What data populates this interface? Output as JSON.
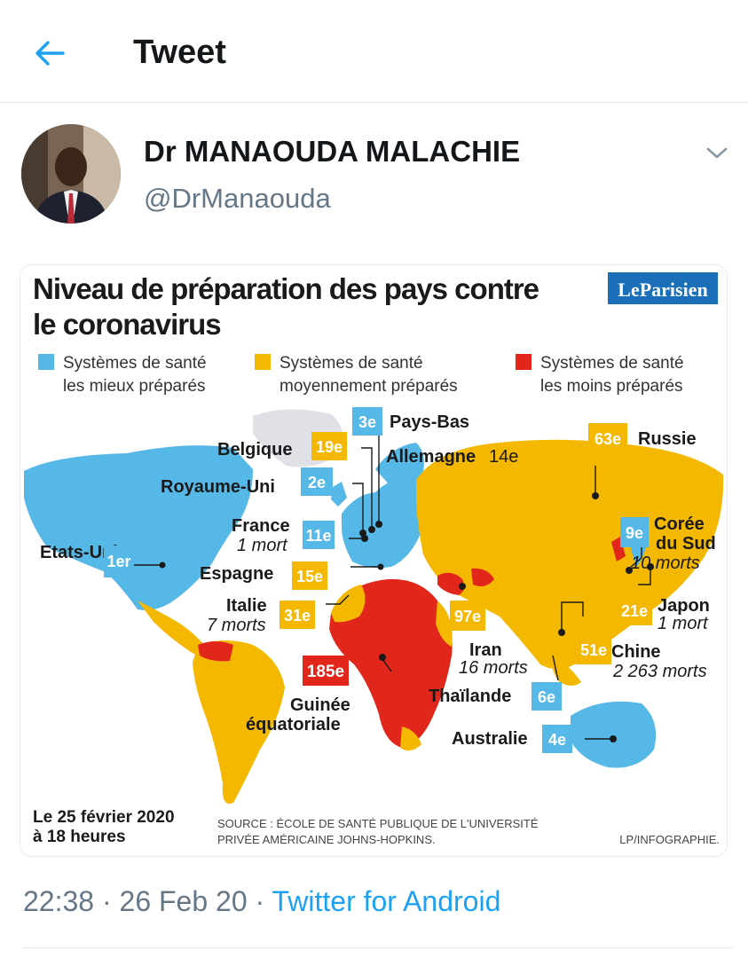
{
  "header": {
    "title": "Tweet",
    "back_icon": "arrow-left-icon",
    "accent": "#1da1f2"
  },
  "author": {
    "name": "Dr MANAOUDA MALACHIE",
    "handle": "@DrManaouda",
    "menu_icon": "chevron-down-icon"
  },
  "infographic": {
    "title_line1": "Niveau de préparation des pays contre",
    "title_line2": "le coronavirus",
    "brand": "LeParisien",
    "legend": [
      {
        "line1": "Systèmes de santé",
        "line2": "les mieux préparés",
        "color": "#55b8e6"
      },
      {
        "line1": "Systèmes de santé",
        "line2": "moyennement préparés",
        "color": "#f5b800"
      },
      {
        "line1": "Systèmes de santé",
        "line2": "les moins préparés",
        "color": "#e1261c"
      }
    ],
    "countries": [
      {
        "rank": "1er",
        "name": "Etats-Unis",
        "name2": "",
        "note": ""
      },
      {
        "rank": "2e",
        "name": "Royaume-Uni",
        "name2": "",
        "note": ""
      },
      {
        "rank": "3e",
        "name": "Pays-Bas",
        "name2": "",
        "note": ""
      },
      {
        "rank": "19e",
        "name": "Belgique",
        "name2": "",
        "note": ""
      },
      {
        "rank": "14e",
        "name": "Allemagne",
        "name2": "",
        "note": ""
      },
      {
        "rank": "11e",
        "name": "France",
        "name2": "",
        "note": "1 mort"
      },
      {
        "rank": "15e",
        "name": "Espagne",
        "name2": "",
        "note": ""
      },
      {
        "rank": "31e",
        "name": "Italie",
        "name2": "",
        "note": "7 morts"
      },
      {
        "rank": "185e",
        "name": "Guinée",
        "name2": "équatoriale",
        "note": ""
      },
      {
        "rank": "97e",
        "name": "Iran",
        "name2": "",
        "note": "16 morts"
      },
      {
        "rank": "63e",
        "name": "Russie",
        "name2": "",
        "note": ""
      },
      {
        "rank": "9e",
        "name": "Corée",
        "name2": "du Sud",
        "note": "10 morts"
      },
      {
        "rank": "21e",
        "name": "Japon",
        "name2": "",
        "note": "1 mort"
      },
      {
        "rank": "51e",
        "name": "Chine",
        "name2": "",
        "note": "2 263 morts"
      },
      {
        "rank": "6e",
        "name": "Thaïlande",
        "name2": "",
        "note": ""
      },
      {
        "rank": "4e",
        "name": "Australie",
        "name2": "",
        "note": ""
      }
    ],
    "date_line1": "Le 25 février 2020",
    "date_line2": "à 18 heures",
    "source_line1": "SOURCE : ÉCOLE DE SANTÉ PUBLIQUE DE L'UNIVERSITÉ",
    "source_line2": "PRIVÉE AMÉRICAINE JOHNS-HOPKINS.",
    "credit": "LP/INFOGRAPHIE."
  },
  "meta": {
    "time": "22:38",
    "separator": "·",
    "date": "26 Feb 20",
    "source": "Twitter for Android"
  }
}
